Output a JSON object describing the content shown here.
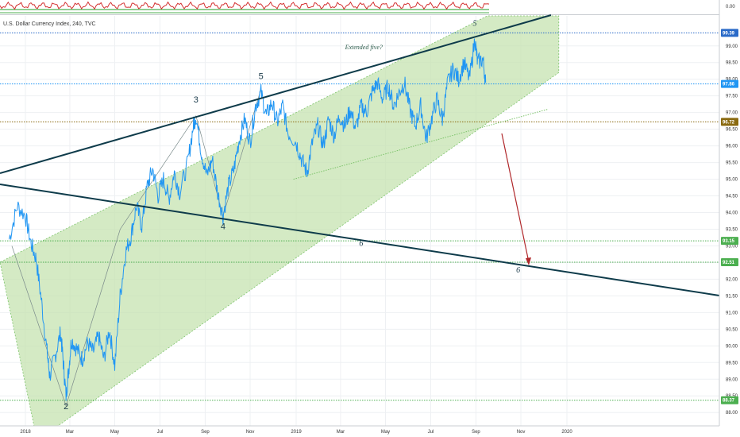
{
  "symbol_title": "U.S. Dollar Currency Index, 240, TVC",
  "oscillator_label": "",
  "chart_data": {
    "type": "line",
    "title": "",
    "series": [
      {
        "values": [
          [
            2017.94,
            93.2
          ],
          [
            2017.97,
            94.2
          ],
          [
            2018.0,
            93.9
          ],
          [
            2018.02,
            93.1
          ],
          [
            2018.04,
            92.6
          ],
          [
            2018.06,
            91.3
          ],
          [
            2018.08,
            89.8
          ],
          [
            2018.09,
            89.1
          ],
          [
            2018.11,
            89.7
          ],
          [
            2018.13,
            90.4
          ],
          [
            2018.14,
            89.5
          ],
          [
            2018.15,
            88.5
          ],
          [
            2018.16,
            89.3
          ],
          [
            2018.17,
            90.2
          ],
          [
            2018.19,
            89.9
          ],
          [
            2018.21,
            89.6
          ],
          [
            2018.23,
            90.1
          ],
          [
            2018.25,
            89.8
          ],
          [
            2018.27,
            90.3
          ],
          [
            2018.29,
            89.6
          ],
          [
            2018.31,
            90.5
          ],
          [
            2018.33,
            89.4
          ],
          [
            2018.35,
            91.5
          ],
          [
            2018.37,
            92.8
          ],
          [
            2018.39,
            93.3
          ],
          [
            2018.41,
            94.2
          ],
          [
            2018.43,
            93.6
          ],
          [
            2018.45,
            94.8
          ],
          [
            2018.47,
            95.3
          ],
          [
            2018.49,
            94.5
          ],
          [
            2018.51,
            95.0
          ],
          [
            2018.53,
            94.4
          ],
          [
            2018.55,
            95.2
          ],
          [
            2018.57,
            94.6
          ],
          [
            2018.6,
            95.5
          ],
          [
            2018.62,
            96.6
          ],
          [
            2018.63,
            96.9
          ],
          [
            2018.65,
            95.8
          ],
          [
            2018.67,
            95.1
          ],
          [
            2018.69,
            95.6
          ],
          [
            2018.71,
            94.6
          ],
          [
            2018.73,
            93.9
          ],
          [
            2018.75,
            94.8
          ],
          [
            2018.77,
            95.3
          ],
          [
            2018.79,
            96.2
          ],
          [
            2018.81,
            96.8
          ],
          [
            2018.83,
            96.1
          ],
          [
            2018.85,
            97.2
          ],
          [
            2018.87,
            97.6
          ],
          [
            2018.89,
            96.9
          ],
          [
            2018.91,
            97.3
          ],
          [
            2018.93,
            96.7
          ],
          [
            2018.95,
            97.2
          ],
          [
            2018.97,
            96.4
          ],
          [
            2019.0,
            96.1
          ],
          [
            2019.02,
            95.6
          ],
          [
            2019.04,
            95.2
          ],
          [
            2019.06,
            96.1
          ],
          [
            2019.08,
            96.6
          ],
          [
            2019.1,
            96.0
          ],
          [
            2019.12,
            96.8
          ],
          [
            2019.14,
            96.3
          ],
          [
            2019.16,
            96.9
          ],
          [
            2019.18,
            96.6
          ],
          [
            2019.2,
            97.1
          ],
          [
            2019.22,
            96.5
          ],
          [
            2019.24,
            97.2
          ],
          [
            2019.26,
            97.0
          ],
          [
            2019.28,
            97.6
          ],
          [
            2019.3,
            97.9
          ],
          [
            2019.32,
            97.4
          ],
          [
            2019.34,
            97.8
          ],
          [
            2019.36,
            97.2
          ],
          [
            2019.38,
            97.6
          ],
          [
            2019.4,
            97.9
          ],
          [
            2019.42,
            97.1
          ],
          [
            2019.44,
            96.6
          ],
          [
            2019.46,
            97.2
          ],
          [
            2019.48,
            96.2
          ],
          [
            2019.5,
            96.8
          ],
          [
            2019.52,
            97.4
          ],
          [
            2019.54,
            96.8
          ],
          [
            2019.56,
            97.9
          ],
          [
            2019.58,
            98.3
          ],
          [
            2019.6,
            98.0
          ],
          [
            2019.62,
            98.5
          ],
          [
            2019.64,
            98.0
          ],
          [
            2019.66,
            99.2
          ],
          [
            2019.67,
            98.5
          ],
          [
            2019.69,
            98.6
          ],
          [
            2019.7,
            97.9
          ]
        ]
      }
    ],
    "x_ticks": [
      "2018",
      "Mar",
      "May",
      "Jul",
      "Sep",
      "Nov",
      "2019",
      "Mar",
      "May",
      "Jul",
      "Sep",
      "Nov",
      "2020"
    ],
    "y_ticks": [
      "99.00",
      "98.50",
      "98.00",
      "97.50",
      "97.00",
      "96.50",
      "96.00",
      "95.50",
      "95.00",
      "94.50",
      "94.00",
      "93.50",
      "93.00",
      "92.50",
      "92.00",
      "91.50",
      "91.00",
      "90.50",
      "90.00",
      "89.50",
      "89.00",
      "88.50",
      "88.00"
    ],
    "ylim": [
      87.6,
      99.9
    ],
    "price_badges": [
      {
        "label": "99.39",
        "value": 99.39,
        "color": "#2a6ac8"
      },
      {
        "label": "97.86",
        "value": 97.86,
        "color": "#2196f3"
      },
      {
        "label": "96.72",
        "value": 96.72,
        "color": "#8a6a10"
      },
      {
        "label": "93.15",
        "value": 93.15,
        "color": "#4caf50"
      },
      {
        "label": "92.51",
        "value": 92.51,
        "color": "#4caf50"
      },
      {
        "label": "88.37",
        "value": 88.37,
        "color": "#4caf50"
      }
    ],
    "wave_labels": [
      {
        "text": "2",
        "x": 2018.15,
        "y": 88.1,
        "italic": false
      },
      {
        "text": "3",
        "x": 2018.63,
        "y": 97.3,
        "italic": false
      },
      {
        "text": "4",
        "x": 2018.73,
        "y": 93.5,
        "italic": false
      },
      {
        "text": "5",
        "x": 2018.87,
        "y": 98.0,
        "italic": false
      },
      {
        "text": "5",
        "x": 2019.66,
        "y": 99.6,
        "italic": true
      },
      {
        "text": "6",
        "x": 2019.24,
        "y": 93.0,
        "italic": true
      },
      {
        "text": "6",
        "x": 2019.82,
        "y": 92.2,
        "italic": true
      }
    ],
    "annotations": [
      {
        "text": "Extended five?",
        "x": 2019.25,
        "y": 98.9
      }
    ],
    "colors": {
      "price": "#2196f3",
      "channel_fill": "#c5e3b0",
      "trendline": "#0e3b4a",
      "target_arrow": "#b0282b"
    }
  }
}
